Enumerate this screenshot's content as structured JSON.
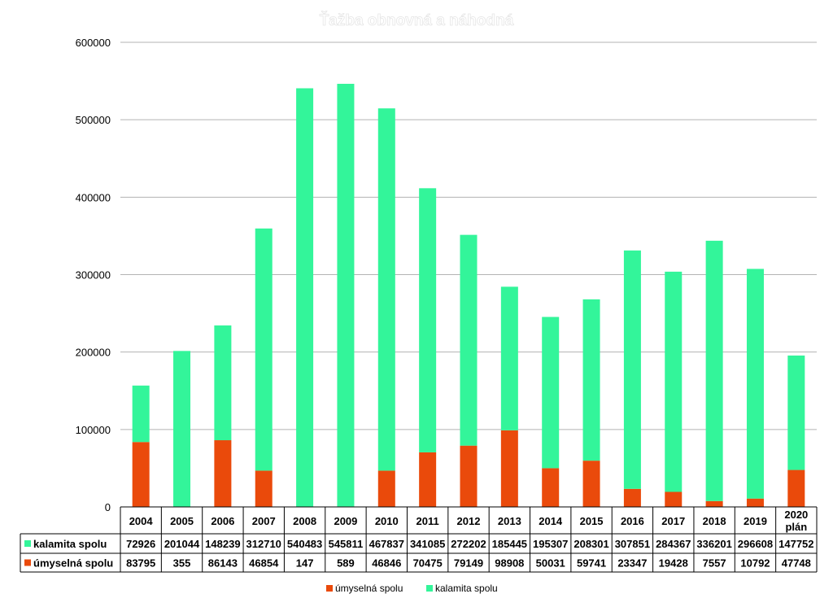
{
  "chart_data": {
    "type": "bar",
    "stacked": true,
    "title": "Ťažba obnovná a náhodná",
    "categories": [
      "2004",
      "2005",
      "2006",
      "2007",
      "2008",
      "2009",
      "2010",
      "2011",
      "2012",
      "2013",
      "2014",
      "2015",
      "2016",
      "2017",
      "2018",
      "2019",
      "2020 plán"
    ],
    "series": [
      {
        "name": "úmyselná spolu",
        "color": "#ea4a0b",
        "values": [
          83795,
          355,
          86143,
          46854,
          147,
          589,
          46846,
          70475,
          79149,
          98908,
          50031,
          59741,
          23347,
          19428,
          7557,
          10792,
          47748
        ]
      },
      {
        "name": "kalamita spolu",
        "color": "#33f59a",
        "values": [
          72926,
          201044,
          148239,
          312710,
          540483,
          545811,
          467837,
          341085,
          272202,
          185445,
          195307,
          208301,
          307851,
          284367,
          336201,
          296608,
          147752
        ]
      }
    ],
    "yticks": [
      "600000",
      "500000",
      "400000",
      "300000",
      "200000",
      "100000",
      "0"
    ],
    "ylim": [
      0,
      600000
    ],
    "grid": true,
    "legend_position": "bottom",
    "data_table": true
  }
}
